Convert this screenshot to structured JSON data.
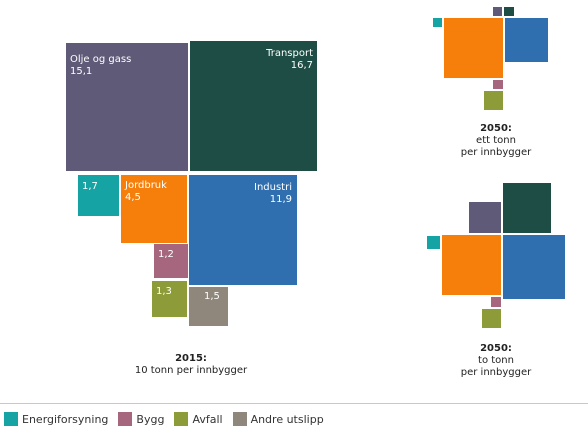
{
  "colors": {
    "olje_og_gass": "#5e5a77",
    "transport": "#1e4d45",
    "industri": "#2f6fb0",
    "jordbruk": "#f57f0a",
    "energiforsyning": "#16a3a3",
    "bygg": "#a6677e",
    "avfall": "#8d9b38",
    "andre": "#8f877c"
  },
  "chart_data": [
    {
      "type": "treemap",
      "caption_title": "2015:",
      "caption_sub": "10 tonn per innbygger",
      "categories": [
        "Olje og gass",
        "Transport",
        "Industri",
        "Jordbruk",
        "Energiforsyning",
        "Bygg",
        "Avfall",
        "Andre utslipp"
      ],
      "values": [
        15.1,
        16.7,
        11.9,
        4.5,
        1.7,
        1.2,
        1.3,
        1.5
      ],
      "value_labels": [
        "15,1",
        "16,7",
        "11,9",
        "4,5",
        "1,7",
        "1,2",
        "1,3",
        "1,5"
      ]
    },
    {
      "type": "treemap",
      "caption_title": "2050:",
      "caption_sub_1": "ett tonn",
      "caption_sub_2": "per innbygger",
      "categories": [
        "Olje og gass",
        "Transport",
        "Industri",
        "Jordbruk",
        "Energiforsyning",
        "Bygg",
        "Avfall"
      ]
    },
    {
      "type": "treemap",
      "caption_title": "2050:",
      "caption_sub_1": "to tonn",
      "caption_sub_2": "per innbygger",
      "categories": [
        "Olje og gass",
        "Transport",
        "Industri",
        "Jordbruk",
        "Energiforsyning",
        "Bygg",
        "Avfall"
      ]
    }
  ],
  "legend": [
    {
      "label": "Energiforsyning",
      "color": "#16a3a3"
    },
    {
      "label": "Bygg",
      "color": "#a6677e"
    },
    {
      "label": "Avfall",
      "color": "#8d9b38"
    },
    {
      "label": "Andre utslipp",
      "color": "#8f877c"
    }
  ]
}
